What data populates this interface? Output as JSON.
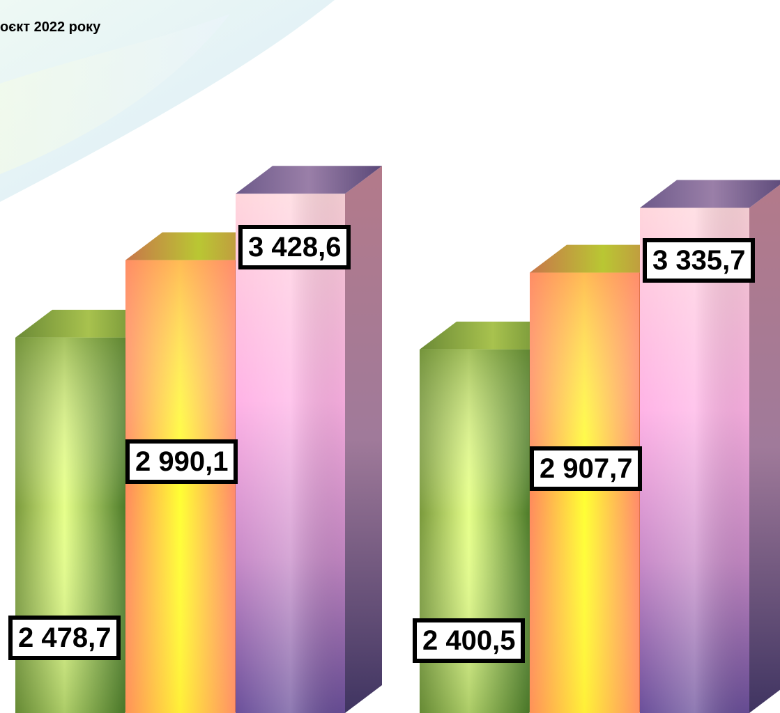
{
  "legend_text": "оєкт 2022 року",
  "chart_data": [
    {
      "type": "bar",
      "style": "3d",
      "values": [
        2478.7,
        2990.1,
        3428.6
      ],
      "labels": [
        "2 478,7",
        "2 990,1",
        "3 428,6"
      ]
    },
    {
      "type": "bar",
      "style": "3d",
      "values": [
        2400.5,
        2907.7,
        3335.7
      ],
      "labels": [
        "2 400,5",
        "2 907,7",
        "3 335,7"
      ]
    }
  ],
  "colors": {
    "green": "#a6c95a",
    "orange": "#ffb347",
    "pink": "#e9a8d6",
    "background_swoosh": "#e8f6f8"
  }
}
